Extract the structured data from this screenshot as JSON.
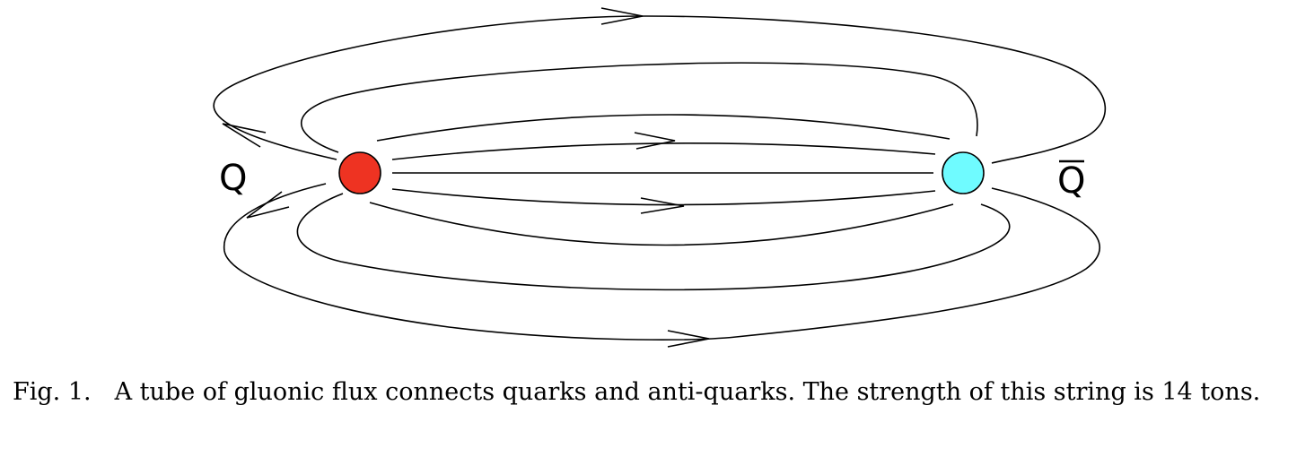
{
  "diagram": {
    "quark_label": "Q",
    "antiquark_label": "Q",
    "quark_color": "#ee3322",
    "antiquark_color": "#6ffbff"
  },
  "caption": {
    "figure_number": "Fig. 1.",
    "text": "A tube of gluonic flux connects quarks and anti-quarks. The strength of this string is 14 tons."
  }
}
